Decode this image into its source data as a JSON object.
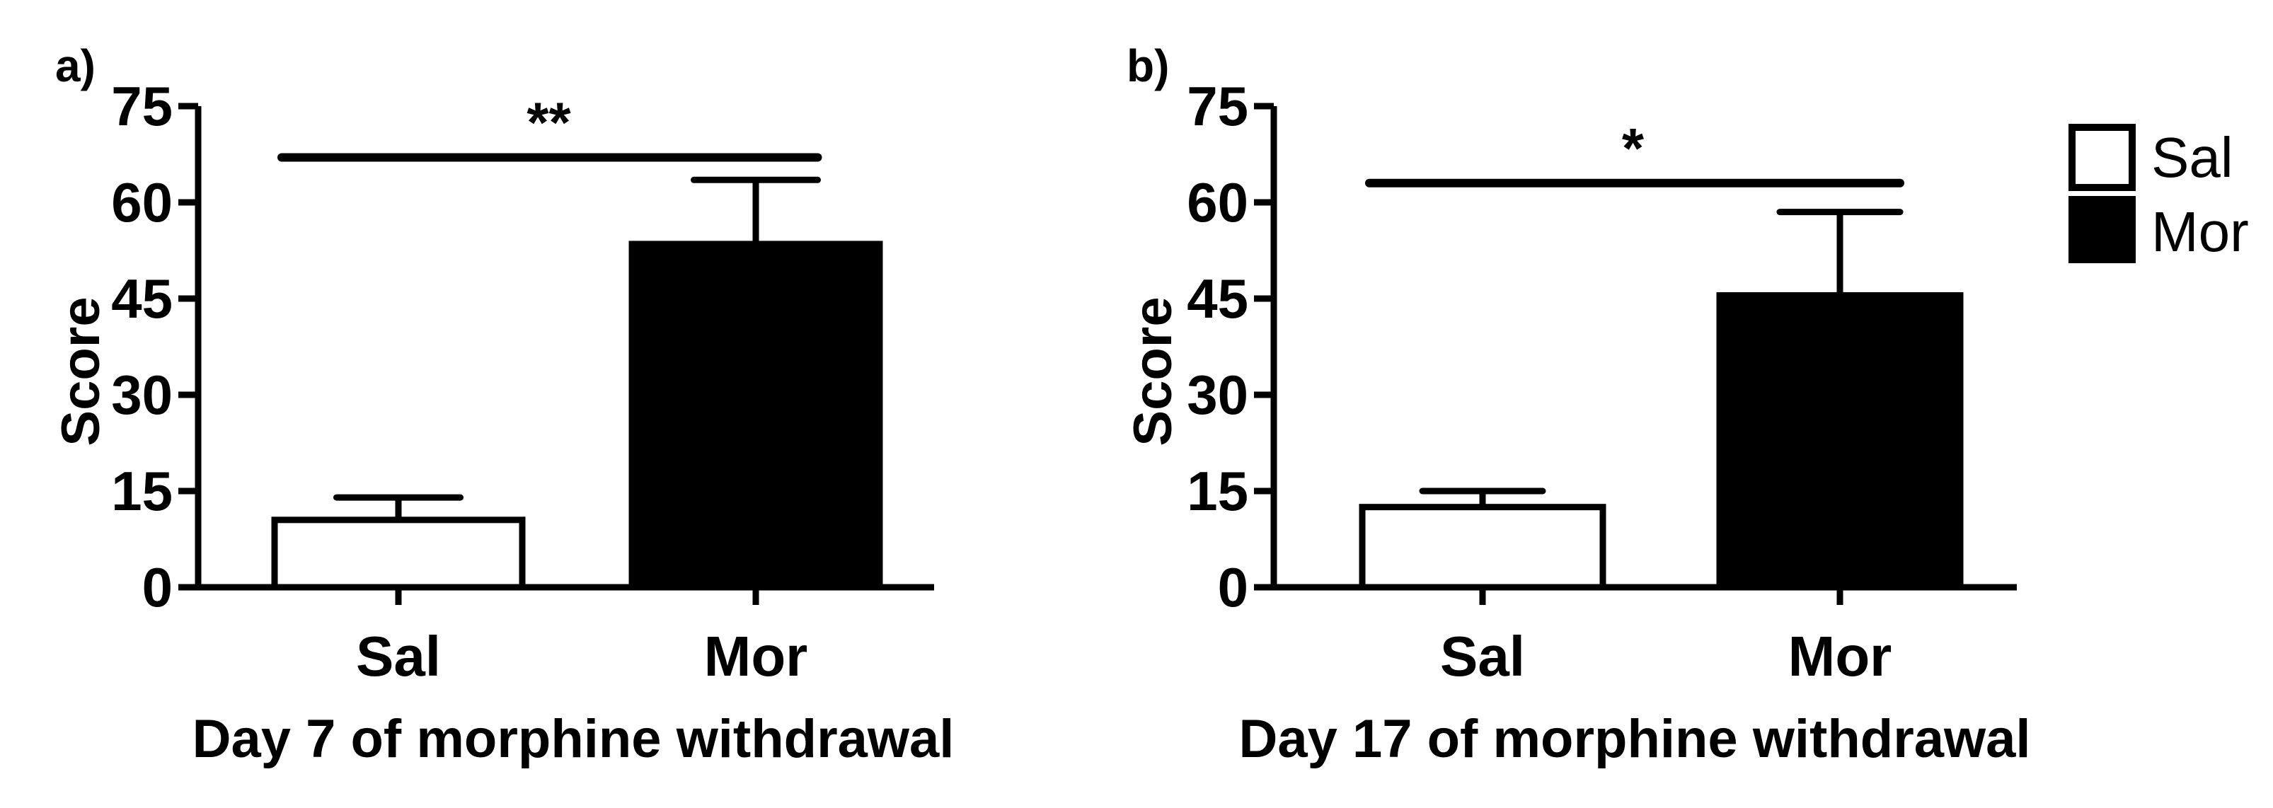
{
  "chart_data": [
    {
      "type": "bar",
      "panel_label": "a)",
      "title": "",
      "xlabel": "Day 7 of morphine withdrawal",
      "ylabel": "Score",
      "ylim": [
        0,
        75
      ],
      "yticks": [
        0,
        15,
        30,
        45,
        60,
        75
      ],
      "ytick_labels": [
        "0",
        "15",
        "30",
        "45",
        "60",
        "75"
      ],
      "categories": [
        "Sal",
        "Mor"
      ],
      "values": [
        10.5,
        53.5
      ],
      "errors": [
        3.5,
        10
      ],
      "colors": [
        "#ffffff",
        "#000000"
      ],
      "significance": {
        "text": "**",
        "line_y": 67
      }
    },
    {
      "type": "bar",
      "panel_label": "b)",
      "title": "",
      "xlabel": "Day 17 of morphine withdrawal",
      "ylabel": "Score",
      "ylim": [
        0,
        75
      ],
      "yticks": [
        0,
        15,
        30,
        45,
        60,
        75
      ],
      "ytick_labels": [
        "0",
        "15",
        "30",
        "45",
        "60",
        "75"
      ],
      "categories": [
        "Sal",
        "Mor"
      ],
      "values": [
        12.5,
        45.5
      ],
      "errors": [
        2.5,
        13
      ],
      "colors": [
        "#ffffff",
        "#000000"
      ],
      "significance": {
        "text": "*",
        "line_y": 63
      }
    }
  ],
  "legend": {
    "placement": "top-right",
    "items": [
      {
        "label": "Sal",
        "color": "#ffffff"
      },
      {
        "label": "Mor",
        "color": "#000000"
      }
    ]
  }
}
